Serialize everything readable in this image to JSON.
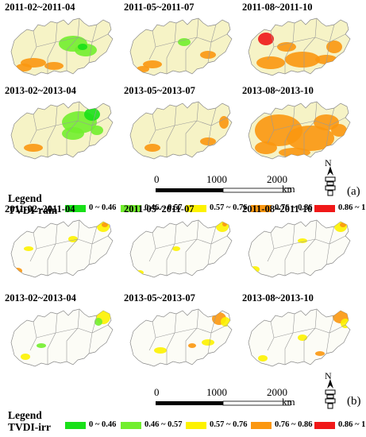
{
  "panels_a": [
    "2011-02~2011-04",
    "2011-05~2011-07",
    "2011-08~2011-10",
    "2013-02~2013-04",
    "2013-05~2013-07",
    "2013-08~2013-10"
  ],
  "panels_b": [
    "2011-02~2011-04",
    "2011-05~2011-07",
    "2011-08~2011-10",
    "2013-02~2013-04",
    "2013-05~2013-07",
    "2013-08~2013-10"
  ],
  "scale": {
    "ticks": [
      "0",
      "1000",
      "2000"
    ],
    "unit": "km"
  },
  "north_label": "N",
  "legend_a": {
    "title1": "Legend",
    "title2": "TVDI-rain",
    "letter": "(a)"
  },
  "legend_b": {
    "title1": "Legend",
    "title2": "TVDI-irr",
    "letter": "(b)"
  },
  "classes": [
    {
      "label": "0 ~ 0.46",
      "color": "#18e018"
    },
    {
      "label": "0.46 ~ 0.57",
      "color": "#72ee2e"
    },
    {
      "label": "0.57 ~ 0.76",
      "color": "#fdf200"
    },
    {
      "label": "0.76 ~ 0.86",
      "color": "#fb9710"
    },
    {
      "label": "0.86 ~ 1",
      "color": "#f01818"
    }
  ]
}
